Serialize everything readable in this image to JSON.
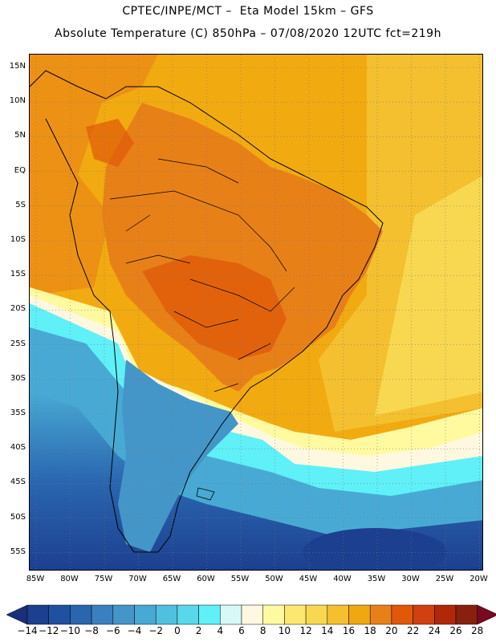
{
  "header": {
    "line1": "CPTEC/INPE/MCT –  Eta Model 15km – GFS",
    "line2": "Absolute Temperature (C) 850hPa – 07/08/2020 12UTC fct=219h"
  },
  "map": {
    "lat_labels": [
      "15N",
      "10N",
      "5N",
      "EQ",
      "5S",
      "10S",
      "15S",
      "20S",
      "25S",
      "30S",
      "35S",
      "40S",
      "45S",
      "50S",
      "55S"
    ],
    "lon_labels": [
      "85W",
      "80W",
      "75W",
      "70W",
      "65W",
      "60W",
      "55W",
      "50W",
      "45W",
      "40W",
      "35W",
      "30W",
      "25W",
      "20W"
    ],
    "grid_lines": true,
    "ocean_fill_color": "#f2aa11"
  },
  "colorbar": {
    "labels": [
      "-14",
      "-12",
      "-10",
      "-8",
      "-6",
      "-4",
      "-2",
      "0",
      "2",
      "4",
      "6",
      "8",
      "10",
      "12",
      "14",
      "16",
      "18",
      "20",
      "22",
      "24",
      "26",
      "28"
    ],
    "colors": [
      "#1c3f8f",
      "#2050a0",
      "#2a66b0",
      "#3a80c0",
      "#4496c8",
      "#48aad4",
      "#50c0e0",
      "#58d8ea",
      "#60f0f8",
      "#d8f8f8",
      "#fff8e0",
      "#fffaa0",
      "#fce870",
      "#f8d850",
      "#f4c030",
      "#f0a810",
      "#e88018",
      "#e05808",
      "#d04010",
      "#b02808",
      "#882010"
    ],
    "under_color": "#1a2f7a",
    "over_color": "#7a0820"
  }
}
